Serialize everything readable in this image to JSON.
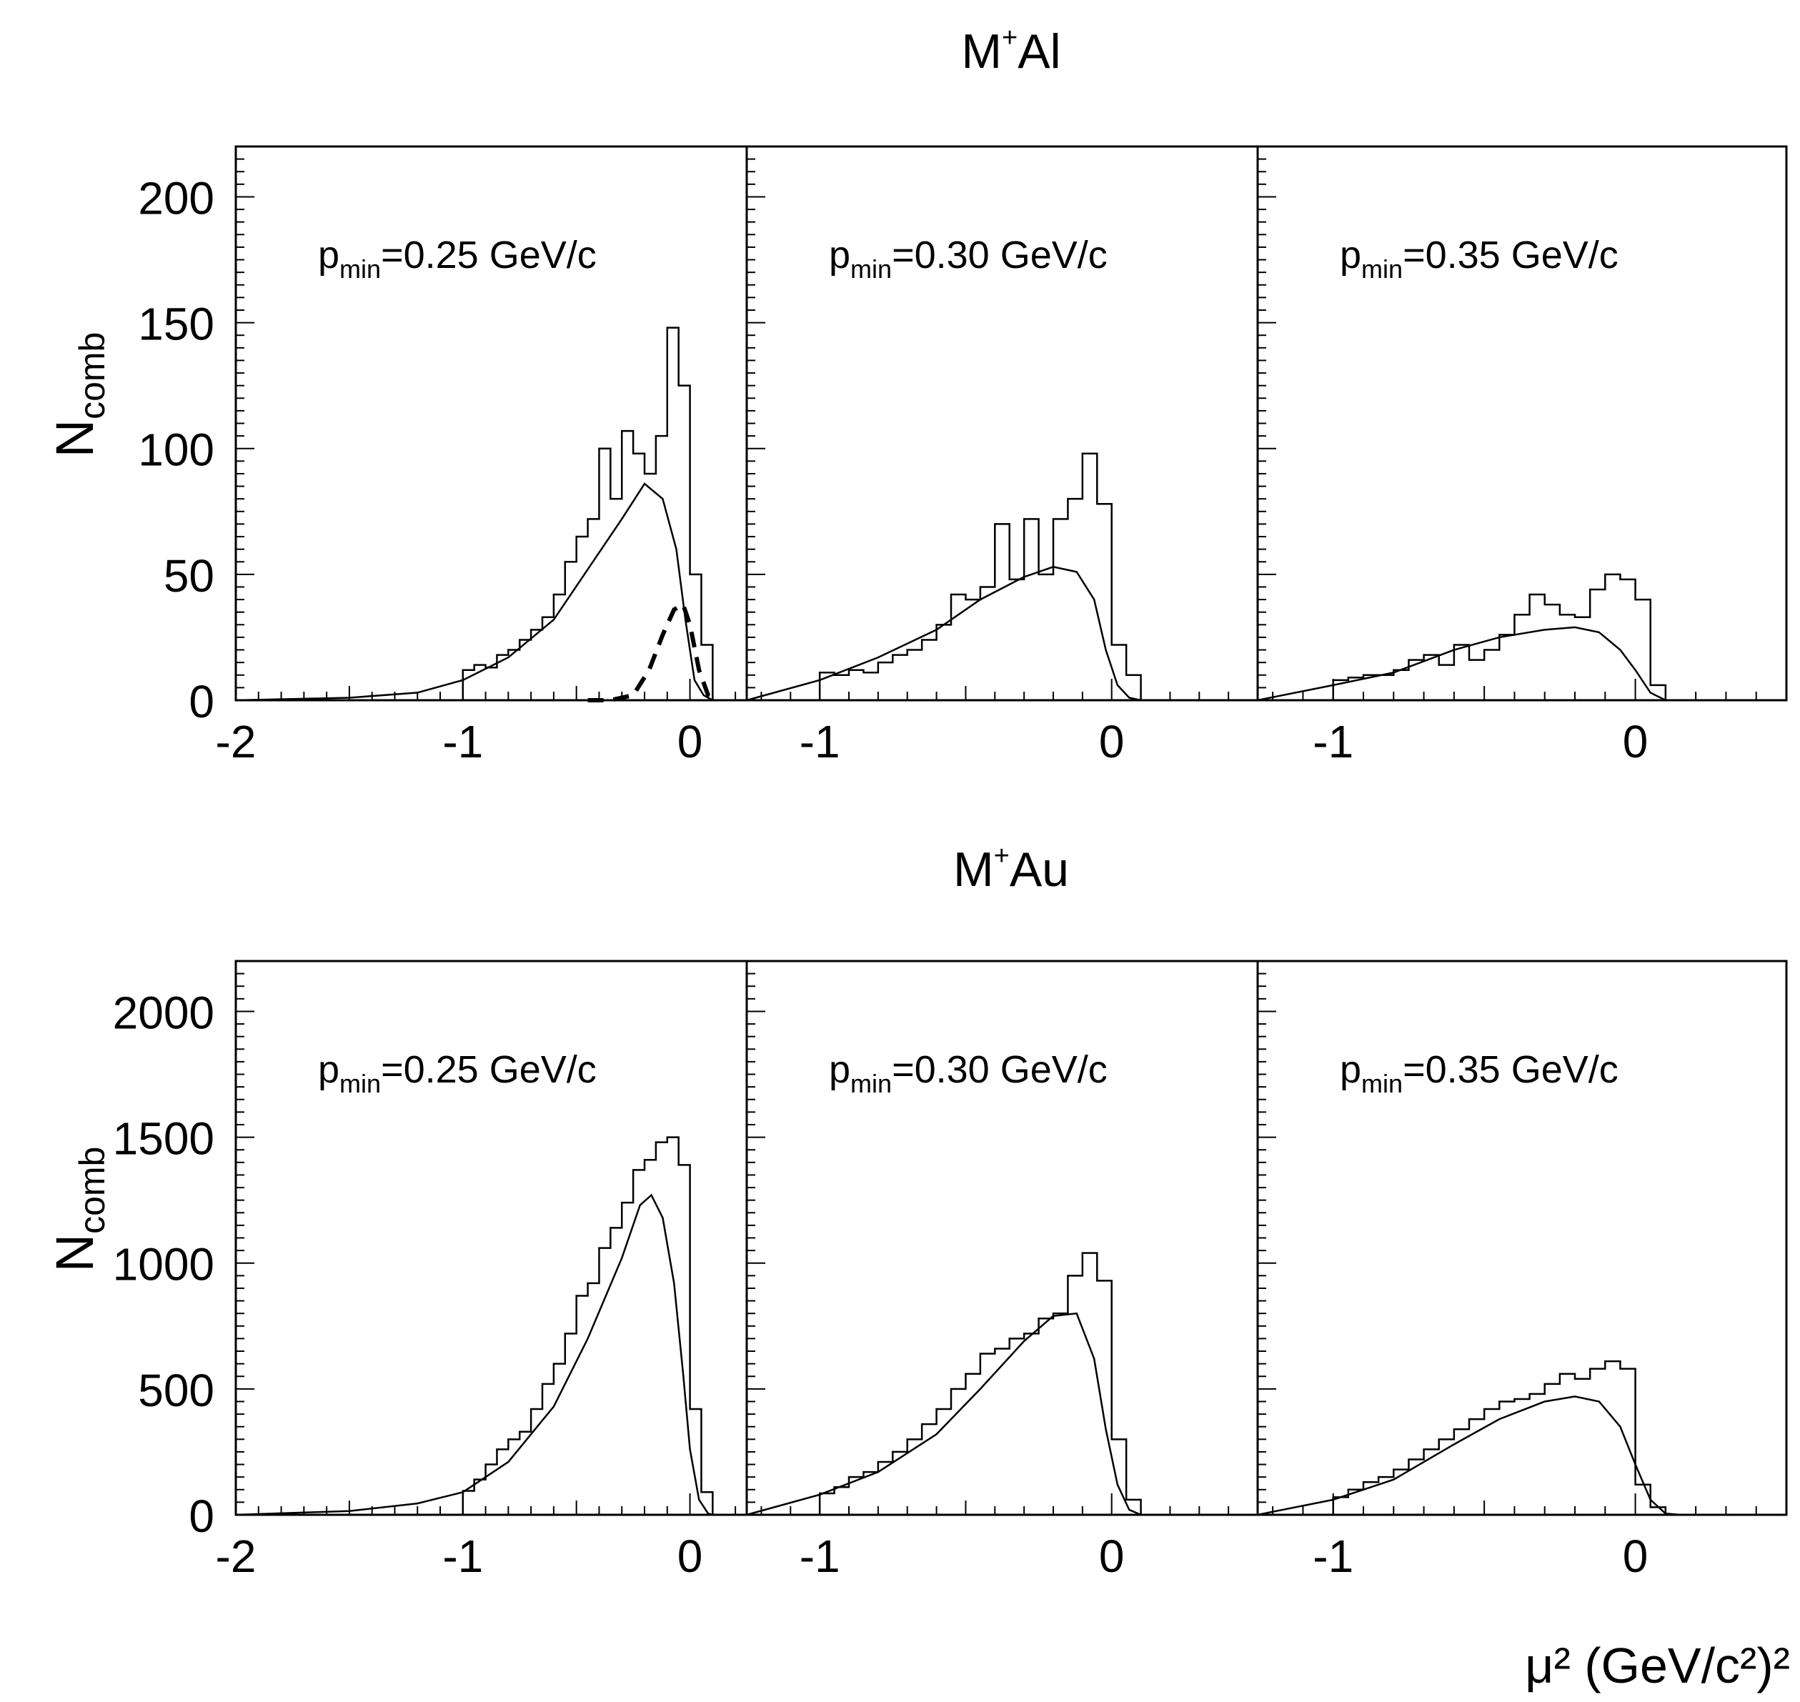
{
  "figure": {
    "x_axis_label": "μ² (GeV/c²)²",
    "panel_label_prefix": "p",
    "panel_label_sub": "min",
    "ylabel_main": "N",
    "ylabel_sub": "comb"
  },
  "chart_data": [
    {
      "type": "histogram",
      "title": "M⁺Al",
      "title_base": "M",
      "title_sup": "+",
      "title_tail": "Al",
      "ylabel": "N_comb",
      "xlabel": "μ² (GeV/c²)²",
      "ylim": [
        0,
        220
      ],
      "yticks": [
        0,
        50,
        100,
        150,
        200
      ],
      "grid": false,
      "bin_edges": [
        -1.0,
        -0.95,
        -0.9,
        -0.85,
        -0.8,
        -0.75,
        -0.7,
        -0.65,
        -0.6,
        -0.55,
        -0.5,
        -0.45,
        -0.4,
        -0.35,
        -0.3,
        -0.25,
        -0.2,
        -0.15,
        -0.1,
        -0.05,
        0.0,
        0.05,
        0.1
      ],
      "panels": [
        {
          "pmin": "=0.25 GeV/c",
          "xlim": [
            -2.0,
            0.25
          ],
          "xticks": [
            -2,
            -1,
            0
          ],
          "histogram": [
            12,
            14,
            13,
            18,
            20,
            24,
            28,
            33,
            42,
            55,
            65,
            72,
            100,
            80,
            107,
            98,
            90,
            105,
            148,
            125,
            50,
            22
          ],
          "fit": [
            [
              -2.0,
              0
            ],
            [
              -1.5,
              1
            ],
            [
              -1.2,
              3
            ],
            [
              -1.0,
              8
            ],
            [
              -0.8,
              17
            ],
            [
              -0.6,
              32
            ],
            [
              -0.45,
              52
            ],
            [
              -0.3,
              72
            ],
            [
              -0.2,
              86
            ],
            [
              -0.12,
              80
            ],
            [
              -0.06,
              60
            ],
            [
              -0.02,
              32
            ],
            [
              0.02,
              8
            ],
            [
              0.06,
              2
            ],
            [
              0.1,
              0
            ]
          ],
          "fit_component": [
            [
              -0.45,
              0
            ],
            [
              -0.35,
              0
            ],
            [
              -0.25,
              2
            ],
            [
              -0.18,
              12
            ],
            [
              -0.12,
              26
            ],
            [
              -0.07,
              36
            ],
            [
              -0.03,
              38
            ],
            [
              0.0,
              30
            ],
            [
              0.04,
              12
            ],
            [
              0.08,
              2
            ],
            [
              0.12,
              0
            ]
          ]
        },
        {
          "pmin": "=0.30 GeV/c",
          "xlim": [
            -1.25,
            0.5
          ],
          "xticks": [
            -1,
            0
          ],
          "histogram": [
            11,
            10,
            12,
            11,
            15,
            18,
            20,
            24,
            30,
            42,
            40,
            45,
            70,
            48,
            72,
            50,
            72,
            80,
            98,
            78,
            22,
            10
          ],
          "fit": [
            [
              -1.25,
              0
            ],
            [
              -1.0,
              8
            ],
            [
              -0.8,
              17
            ],
            [
              -0.6,
              28
            ],
            [
              -0.45,
              40
            ],
            [
              -0.3,
              49
            ],
            [
              -0.2,
              53
            ],
            [
              -0.12,
              51
            ],
            [
              -0.06,
              40
            ],
            [
              -0.02,
              20
            ],
            [
              0.02,
              6
            ],
            [
              0.06,
              1
            ],
            [
              0.1,
              0
            ]
          ]
        },
        {
          "pmin": "=0.35 GeV/c",
          "xlim": [
            -1.25,
            0.5
          ],
          "xticks": [
            -1,
            0
          ],
          "histogram": [
            8,
            9,
            10,
            10,
            12,
            16,
            18,
            14,
            22,
            16,
            20,
            26,
            34,
            42,
            38,
            34,
            33,
            44,
            50,
            48,
            40,
            6
          ],
          "fit": [
            [
              -1.25,
              0
            ],
            [
              -1.0,
              6
            ],
            [
              -0.8,
              11
            ],
            [
              -0.6,
              20
            ],
            [
              -0.45,
              25
            ],
            [
              -0.3,
              28
            ],
            [
              -0.2,
              29
            ],
            [
              -0.12,
              27
            ],
            [
              -0.05,
              20
            ],
            [
              0.0,
              12
            ],
            [
              0.05,
              3
            ],
            [
              0.1,
              0
            ]
          ]
        }
      ]
    },
    {
      "type": "histogram",
      "title": "M⁺Au",
      "title_base": "M",
      "title_sup": "+",
      "title_tail": "Au",
      "ylabel": "N_comb",
      "xlabel": "μ² (GeV/c²)²",
      "ylim": [
        0,
        2200
      ],
      "yticks": [
        0,
        500,
        1000,
        1500,
        2000
      ],
      "grid": false,
      "bin_edges": [
        -1.0,
        -0.95,
        -0.9,
        -0.85,
        -0.8,
        -0.75,
        -0.7,
        -0.65,
        -0.6,
        -0.55,
        -0.5,
        -0.45,
        -0.4,
        -0.35,
        -0.3,
        -0.25,
        -0.2,
        -0.15,
        -0.1,
        -0.05,
        0.0,
        0.05,
        0.1
      ],
      "panels": [
        {
          "pmin": "=0.25 GeV/c",
          "xlim": [
            -2.0,
            0.25
          ],
          "xticks": [
            -2,
            -1,
            0
          ],
          "histogram": [
            95,
            140,
            200,
            260,
            300,
            330,
            420,
            520,
            600,
            720,
            870,
            920,
            1060,
            1140,
            1240,
            1370,
            1410,
            1480,
            1500,
            1390,
            420,
            90
          ],
          "fit": [
            [
              -2.0,
              0
            ],
            [
              -1.5,
              15
            ],
            [
              -1.2,
              45
            ],
            [
              -1.0,
              90
            ],
            [
              -0.8,
              210
            ],
            [
              -0.6,
              430
            ],
            [
              -0.45,
              700
            ],
            [
              -0.3,
              1020
            ],
            [
              -0.22,
              1230
            ],
            [
              -0.17,
              1270
            ],
            [
              -0.12,
              1180
            ],
            [
              -0.07,
              920
            ],
            [
              -0.03,
              560
            ],
            [
              0.0,
              260
            ],
            [
              0.04,
              60
            ],
            [
              0.08,
              5
            ],
            [
              0.1,
              0
            ]
          ]
        },
        {
          "pmin": "=0.30 GeV/c",
          "xlim": [
            -1.25,
            0.5
          ],
          "xticks": [
            -1,
            0
          ],
          "histogram": [
            85,
            110,
            150,
            170,
            210,
            250,
            300,
            360,
            420,
            500,
            560,
            640,
            660,
            700,
            720,
            780,
            800,
            950,
            1040,
            930,
            300,
            60
          ],
          "fit": [
            [
              -1.25,
              0
            ],
            [
              -1.0,
              80
            ],
            [
              -0.8,
              170
            ],
            [
              -0.6,
              320
            ],
            [
              -0.45,
              500
            ],
            [
              -0.3,
              690
            ],
            [
              -0.2,
              790
            ],
            [
              -0.12,
              800
            ],
            [
              -0.06,
              620
            ],
            [
              -0.02,
              340
            ],
            [
              0.02,
              120
            ],
            [
              0.06,
              20
            ],
            [
              0.1,
              0
            ]
          ]
        },
        {
          "pmin": "=0.35 GeV/c",
          "xlim": [
            -1.25,
            0.5
          ],
          "xticks": [
            -1,
            0
          ],
          "histogram": [
            70,
            100,
            130,
            150,
            180,
            220,
            260,
            300,
            340,
            380,
            420,
            450,
            460,
            480,
            520,
            560,
            540,
            580,
            610,
            580,
            120,
            30
          ],
          "fit": [
            [
              -1.25,
              0
            ],
            [
              -1.0,
              60
            ],
            [
              -0.8,
              140
            ],
            [
              -0.6,
              280
            ],
            [
              -0.45,
              380
            ],
            [
              -0.3,
              450
            ],
            [
              -0.2,
              470
            ],
            [
              -0.12,
              450
            ],
            [
              -0.05,
              350
            ],
            [
              0.0,
              200
            ],
            [
              0.05,
              60
            ],
            [
              0.1,
              5
            ],
            [
              0.15,
              0
            ]
          ]
        }
      ]
    }
  ]
}
